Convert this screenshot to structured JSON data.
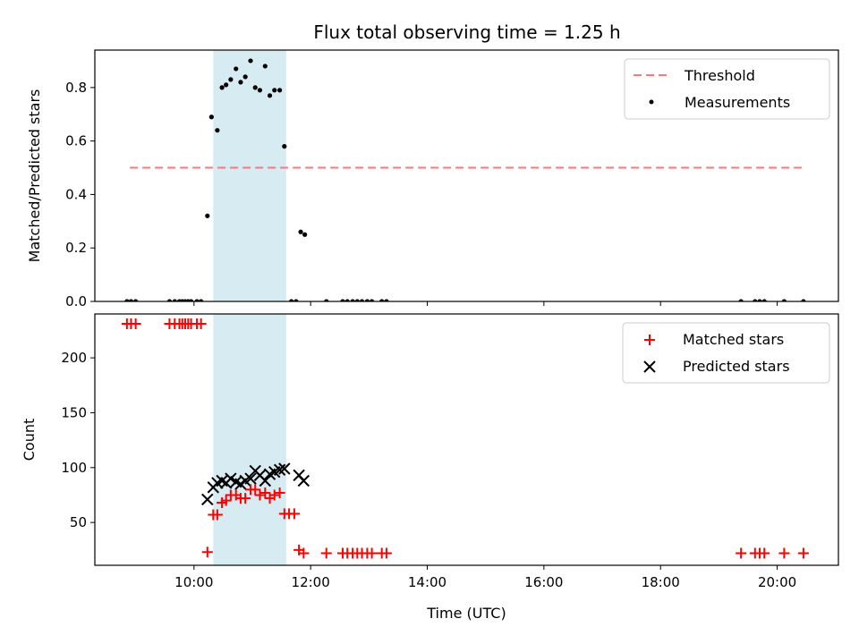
{
  "chart_data": {
    "type": "scatter",
    "title": "Flux total observing time = 1.25 h",
    "xlabel": "Time (UTC)",
    "xlim": [
      8.3,
      21.05
    ],
    "x_ticks": [
      10,
      12,
      14,
      16,
      18,
      20
    ],
    "x_tick_labels": [
      "10:00",
      "12:00",
      "14:00",
      "16:00",
      "18:00",
      "20:00"
    ],
    "shaded_interval": {
      "start": 10.33,
      "end": 11.58,
      "color": "#add8e6"
    },
    "top": {
      "ylabel": "Matched/Predicted stars",
      "ylim": [
        0,
        0.94
      ],
      "y_ticks": [
        0.0,
        0.2,
        0.4,
        0.6,
        0.8
      ],
      "y_tick_labels": [
        "0.0",
        "0.2",
        "0.4",
        "0.6",
        "0.8"
      ],
      "threshold": {
        "name": "Threshold",
        "value": 0.5,
        "x_start": 8.9,
        "x_end": 20.45,
        "color": "#ff7777"
      },
      "legend": {
        "position": "top-right",
        "entries": [
          {
            "label": "Threshold"
          },
          {
            "label": "Measurements"
          }
        ]
      },
      "series": [
        {
          "name": "Measurements",
          "color": "#000000",
          "x": [
            8.85,
            8.92,
            9.0,
            9.58,
            9.67,
            9.75,
            9.8,
            9.85,
            9.9,
            9.95,
            10.05,
            10.12,
            10.23,
            10.3,
            10.4,
            10.48,
            10.55,
            10.63,
            10.72,
            10.8,
            10.88,
            10.97,
            11.05,
            11.13,
            11.22,
            11.3,
            11.38,
            11.47,
            11.55,
            11.67,
            11.75,
            11.83,
            11.9,
            12.27,
            12.55,
            12.63,
            12.72,
            12.8,
            12.88,
            12.97,
            13.05,
            13.22,
            13.3,
            19.38,
            19.62,
            19.7,
            19.78,
            20.12,
            20.45
          ],
          "y": [
            0,
            0,
            0,
            0,
            0,
            0,
            0,
            0,
            0,
            0,
            0,
            0,
            0.32,
            0.69,
            0.64,
            0.8,
            0.81,
            0.83,
            0.87,
            0.82,
            0.84,
            0.9,
            0.8,
            0.79,
            0.88,
            0.77,
            0.79,
            0.79,
            0.58,
            0,
            0,
            0.26,
            0.25,
            0,
            0,
            0,
            0,
            0,
            0,
            0,
            0,
            0,
            0,
            0,
            0,
            0,
            0,
            0,
            0
          ]
        }
      ]
    },
    "bottom": {
      "ylabel": "Count",
      "ylim": [
        11,
        240
      ],
      "y_ticks": [
        50,
        100,
        150,
        200
      ],
      "y_tick_labels": [
        "50",
        "100",
        "150",
        "200"
      ],
      "legend": {
        "position": "top-right",
        "entries": [
          {
            "label": "Matched stars"
          },
          {
            "label": "Predicted stars"
          }
        ]
      },
      "series": [
        {
          "name": "Matched stars",
          "marker": "plus",
          "color": "#ff0000",
          "x": [
            8.85,
            8.92,
            9.0,
            9.58,
            9.67,
            9.75,
            9.8,
            9.85,
            9.9,
            9.95,
            10.05,
            10.12,
            10.23,
            10.33,
            10.4,
            10.48,
            10.55,
            10.63,
            10.72,
            10.8,
            10.88,
            10.97,
            11.05,
            11.13,
            11.22,
            11.3,
            11.38,
            11.47,
            11.55,
            11.63,
            11.72,
            11.8,
            11.88,
            12.27,
            12.55,
            12.63,
            12.72,
            12.8,
            12.88,
            12.97,
            13.05,
            13.22,
            13.3,
            19.38,
            19.62,
            19.7,
            19.78,
            20.12,
            20.45
          ],
          "y": [
            231,
            231,
            231,
            231,
            231,
            231,
            231,
            231,
            231,
            231,
            231,
            231,
            23,
            57,
            57,
            68,
            70,
            75,
            75,
            72,
            72,
            80,
            80,
            75,
            77,
            72,
            75,
            77,
            58,
            58,
            58,
            25,
            22,
            22,
            22,
            22,
            22,
            22,
            22,
            22,
            22,
            22,
            22,
            22,
            22,
            22,
            22,
            22,
            22
          ]
        },
        {
          "name": "Predicted stars",
          "marker": "x",
          "color": "#000000",
          "x": [
            10.23,
            10.33,
            10.4,
            10.48,
            10.55,
            10.63,
            10.72,
            10.8,
            10.88,
            10.97,
            11.05,
            11.13,
            11.22,
            11.3,
            11.38,
            11.47,
            11.55,
            11.8,
            11.88
          ],
          "y": [
            71,
            82,
            86,
            88,
            86,
            90,
            87,
            85,
            88,
            90,
            97,
            93,
            88,
            94,
            96,
            98,
            99,
            93,
            88
          ]
        }
      ]
    }
  }
}
